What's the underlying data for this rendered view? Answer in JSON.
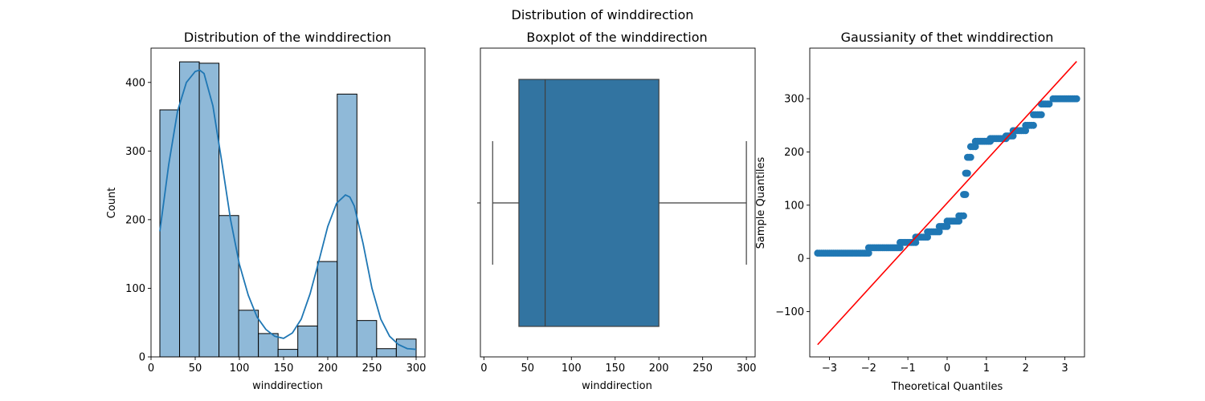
{
  "figure": {
    "suptitle": "Distribution of winddirection"
  },
  "colors": {
    "hist_fill": "#8fb9d8",
    "kde_line": "#1f77b4",
    "box_fill": "#3274a1",
    "box_line": "#3f3f3f",
    "qq_points": "#1f77b4",
    "qq_line": "#ff0000"
  },
  "chart_data": [
    {
      "type": "bar",
      "subtype": "histogram",
      "title": "Distribution of the winddirection",
      "xlabel": "winddirection",
      "ylabel": "Count",
      "xlim": [
        0,
        310
      ],
      "ylim": [
        0,
        450
      ],
      "xticks": [
        0,
        50,
        100,
        150,
        200,
        250,
        300
      ],
      "yticks": [
        0,
        100,
        200,
        300,
        400
      ],
      "bin_edges": [
        10,
        32.3,
        54.6,
        76.9,
        99.2,
        121.5,
        143.8,
        166.1,
        188.4,
        210.7,
        233,
        255.3,
        277.6,
        300
      ],
      "counts": [
        360,
        430,
        428,
        206,
        68,
        34,
        11,
        45,
        139,
        383,
        53,
        12,
        26
      ],
      "kde": {
        "x": [
          10,
          20,
          30,
          40,
          50,
          55,
          60,
          70,
          80,
          90,
          100,
          110,
          120,
          130,
          140,
          150,
          160,
          170,
          180,
          190,
          200,
          210,
          220,
          225,
          230,
          240,
          250,
          260,
          270,
          280,
          290,
          300
        ],
        "y": [
          183,
          280,
          358,
          400,
          416,
          418,
          413,
          366,
          285,
          200,
          135,
          90,
          58,
          40,
          30,
          27,
          35,
          55,
          92,
          140,
          190,
          224,
          236,
          233,
          220,
          165,
          100,
          55,
          30,
          18,
          12,
          11
        ]
      }
    },
    {
      "type": "box",
      "title": "Boxplot of the winddirection",
      "xlabel": "winddirection",
      "xlim": [
        -4,
        310
      ],
      "xticks": [
        0,
        50,
        100,
        150,
        200,
        250,
        300
      ],
      "whisker_low": 10,
      "q1": 40,
      "median": 70,
      "q3": 200,
      "whisker_high": 300
    },
    {
      "type": "scatter",
      "subtype": "qq-plot",
      "title": "Gaussianity of thet  winddirection",
      "xlabel": "Theoretical Quantiles",
      "ylabel": "Sample Quantiles",
      "xlim": [
        -3.5,
        3.5
      ],
      "ylim": [
        -185,
        395
      ],
      "xticks": [
        -3,
        -2,
        -1,
        0,
        1,
        2,
        3
      ],
      "yticks": [
        -100,
        0,
        100,
        200,
        300
      ],
      "reference_line": {
        "x": [
          -3.3,
          3.3
        ],
        "y": [
          -162,
          370
        ]
      },
      "quantile_steps": [
        {
          "x_from": -3.3,
          "x_to": -2.0,
          "y": 10
        },
        {
          "x_from": -2.0,
          "x_to": -1.2,
          "y": 20
        },
        {
          "x_from": -1.2,
          "x_to": -0.8,
          "y": 30
        },
        {
          "x_from": -0.8,
          "x_to": -0.5,
          "y": 40
        },
        {
          "x_from": -0.5,
          "x_to": -0.2,
          "y": 50
        },
        {
          "x_from": -0.2,
          "x_to": 0.0,
          "y": 60
        },
        {
          "x_from": 0.0,
          "x_to": 0.3,
          "y": 70
        },
        {
          "x_from": 0.3,
          "x_to": 0.42,
          "y": 80
        },
        {
          "x_from": 0.42,
          "x_to": 0.47,
          "y": 120
        },
        {
          "x_from": 0.47,
          "x_to": 0.52,
          "y": 160
        },
        {
          "x_from": 0.52,
          "x_to": 0.6,
          "y": 190
        },
        {
          "x_from": 0.6,
          "x_to": 0.72,
          "y": 210
        },
        {
          "x_from": 0.72,
          "x_to": 1.1,
          "y": 220
        },
        {
          "x_from": 1.1,
          "x_to": 1.5,
          "y": 225
        },
        {
          "x_from": 1.5,
          "x_to": 1.68,
          "y": 230
        },
        {
          "x_from": 1.68,
          "x_to": 2.0,
          "y": 240
        },
        {
          "x_from": 2.0,
          "x_to": 2.2,
          "y": 250
        },
        {
          "x_from": 2.2,
          "x_to": 2.4,
          "y": 270
        },
        {
          "x_from": 2.4,
          "x_to": 2.6,
          "y": 290
        },
        {
          "x_from": 2.7,
          "x_to": 3.3,
          "y": 300
        }
      ]
    }
  ]
}
